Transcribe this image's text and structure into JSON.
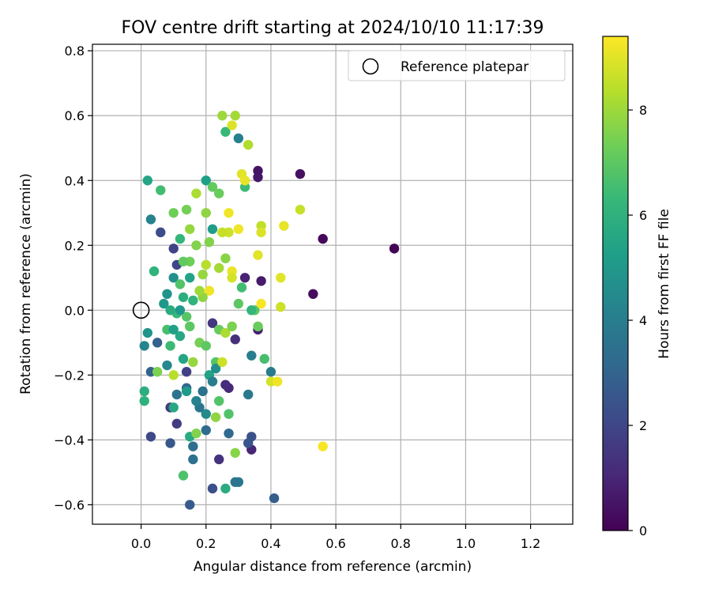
{
  "chart_data": {
    "type": "scatter",
    "title": "FOV centre drift starting at 2024/10/10 11:17:39",
    "xlabel": "Angular distance from reference (arcmin)",
    "ylabel": "Rotation from reference (arcmin)",
    "xlim": [
      -0.15,
      1.33
    ],
    "ylim": [
      -0.66,
      0.82
    ],
    "xticks": [
      0.0,
      0.2,
      0.4,
      0.6,
      0.8,
      1.0,
      1.2
    ],
    "xtick_labels": [
      "0.0",
      "0.2",
      "0.4",
      "0.6",
      "0.8",
      "1.0",
      "1.2"
    ],
    "yticks": [
      -0.6,
      -0.4,
      -0.2,
      0.0,
      0.2,
      0.4,
      0.6,
      0.8
    ],
    "ytick_labels": [
      "−0.6",
      "−0.4",
      "−0.2",
      "0.0",
      "0.2",
      "0.4",
      "0.6",
      "0.8"
    ],
    "grid": true,
    "legend": {
      "position": "top-right",
      "entries": [
        "Reference platepar"
      ]
    },
    "reference_point": {
      "name": "Reference platepar",
      "x": 0.0,
      "y": 0.0
    },
    "colorbar": {
      "label": "Hours from first FF file",
      "colormap": "viridis",
      "range": [
        0,
        9.4
      ],
      "ticks": [
        0,
        2,
        4,
        6,
        8
      ],
      "tick_labels": [
        "0",
        "2",
        "4",
        "6",
        "8"
      ]
    },
    "series": [
      {
        "points": [
          [
            0.78,
            0.19,
            0.1
          ],
          [
            0.56,
            0.22,
            0.2
          ],
          [
            0.53,
            0.05,
            0.3
          ],
          [
            0.49,
            0.42,
            0.4
          ],
          [
            0.36,
            0.43,
            0.5
          ],
          [
            0.36,
            0.41,
            0.6
          ],
          [
            0.37,
            0.09,
            0.7
          ],
          [
            0.36,
            -0.06,
            0.8
          ],
          [
            0.32,
            0.1,
            0.9
          ],
          [
            0.34,
            -0.43,
            1.0
          ],
          [
            0.27,
            -0.24,
            1.1
          ],
          [
            0.26,
            -0.23,
            1.2
          ],
          [
            0.29,
            -0.09,
            1.3
          ],
          [
            0.24,
            -0.46,
            1.4
          ],
          [
            0.22,
            -0.04,
            1.5
          ],
          [
            0.09,
            -0.3,
            1.6
          ],
          [
            0.11,
            -0.35,
            1.7
          ],
          [
            0.14,
            -0.19,
            1.8
          ],
          [
            0.1,
            0.19,
            1.9
          ],
          [
            0.11,
            0.14,
            2.0
          ],
          [
            0.03,
            -0.39,
            2.1
          ],
          [
            0.06,
            0.24,
            2.2
          ],
          [
            0.22,
            -0.55,
            2.3
          ],
          [
            0.34,
            -0.39,
            2.4
          ],
          [
            0.33,
            -0.41,
            2.5
          ],
          [
            0.09,
            -0.41,
            2.6
          ],
          [
            0.15,
            -0.6,
            2.7
          ],
          [
            0.41,
            -0.58,
            2.8
          ],
          [
            0.05,
            -0.1,
            2.9
          ],
          [
            0.03,
            -0.19,
            3.0
          ],
          [
            0.14,
            -0.24,
            3.1
          ],
          [
            0.27,
            -0.38,
            3.2
          ],
          [
            0.2,
            -0.37,
            3.3
          ],
          [
            0.16,
            -0.42,
            3.4
          ],
          [
            0.16,
            -0.46,
            3.5
          ],
          [
            0.29,
            -0.53,
            3.6
          ],
          [
            0.3,
            -0.53,
            3.7
          ],
          [
            0.33,
            -0.26,
            3.8
          ],
          [
            0.4,
            -0.19,
            3.9
          ],
          [
            0.34,
            -0.14,
            4.0
          ],
          [
            0.3,
            0.53,
            4.1
          ],
          [
            0.03,
            0.28,
            4.2
          ],
          [
            0.01,
            -0.11,
            4.3
          ],
          [
            0.08,
            -0.17,
            4.4
          ],
          [
            0.2,
            -0.32,
            4.5
          ],
          [
            0.17,
            -0.28,
            4.6
          ],
          [
            0.1,
            0.1,
            4.7
          ],
          [
            0.08,
            0.05,
            4.8
          ],
          [
            0.02,
            -0.07,
            4.9
          ],
          [
            0.07,
            0.02,
            5.0
          ],
          [
            0.14,
            -0.25,
            5.1
          ],
          [
            0.22,
            0.25,
            5.2
          ],
          [
            0.2,
            0.4,
            5.3
          ],
          [
            0.15,
            0.1,
            5.4
          ],
          [
            0.02,
            0.4,
            5.5
          ],
          [
            0.1,
            -0.3,
            5.6
          ],
          [
            0.15,
            -0.39,
            5.7
          ],
          [
            0.26,
            -0.55,
            5.8
          ],
          [
            0.01,
            -0.25,
            5.9
          ],
          [
            0.01,
            -0.28,
            6.0
          ],
          [
            0.04,
            0.12,
            6.1
          ],
          [
            0.12,
            0.22,
            6.2
          ],
          [
            0.26,
            0.55,
            6.3
          ],
          [
            0.32,
            0.38,
            6.4
          ],
          [
            0.06,
            0.37,
            6.5
          ],
          [
            0.08,
            -0.06,
            6.6
          ],
          [
            0.13,
            -0.51,
            6.7
          ],
          [
            0.27,
            -0.32,
            6.8
          ],
          [
            0.23,
            -0.16,
            6.9
          ],
          [
            0.35,
            0.0,
            7.0
          ],
          [
            0.22,
            0.38,
            7.1
          ],
          [
            0.24,
            0.36,
            7.2
          ],
          [
            0.1,
            0.3,
            7.3
          ],
          [
            0.14,
            0.31,
            7.4
          ],
          [
            0.05,
            -0.19,
            7.5
          ],
          [
            0.17,
            -0.38,
            7.6
          ],
          [
            0.29,
            -0.44,
            7.7
          ],
          [
            0.2,
            0.3,
            7.8
          ],
          [
            0.15,
            0.25,
            7.9
          ],
          [
            0.25,
            0.6,
            8.0
          ],
          [
            0.29,
            0.6,
            8.1
          ],
          [
            0.17,
            0.36,
            8.2
          ],
          [
            0.33,
            0.51,
            8.3
          ],
          [
            0.1,
            -0.2,
            8.4
          ],
          [
            0.37,
            0.26,
            8.5
          ],
          [
            0.49,
            0.31,
            8.6
          ],
          [
            0.43,
            0.01,
            8.7
          ],
          [
            0.4,
            -0.22,
            8.8
          ],
          [
            0.28,
            0.57,
            8.9
          ],
          [
            0.31,
            0.42,
            9.0
          ],
          [
            0.32,
            0.4,
            9.1
          ],
          [
            0.27,
            0.3,
            9.2
          ],
          [
            0.42,
            -0.22,
            9.2
          ],
          [
            0.56,
            -0.42,
            9.3
          ],
          [
            0.37,
            0.02,
            9.3
          ],
          [
            0.44,
            0.26,
            9.1
          ],
          [
            0.43,
            0.1,
            9.0
          ],
          [
            0.37,
            0.24,
            8.9
          ],
          [
            0.36,
            0.17,
            9.0
          ],
          [
            0.3,
            0.25,
            9.2
          ],
          [
            0.28,
            0.12,
            9.1
          ],
          [
            0.27,
            0.24,
            8.7
          ],
          [
            0.25,
            0.24,
            8.6
          ],
          [
            0.21,
            0.06,
            9.2
          ],
          [
            0.2,
            0.14,
            8.4
          ],
          [
            0.19,
            0.04,
            7.8
          ],
          [
            0.17,
            0.2,
            7.6
          ],
          [
            0.15,
            0.15,
            7.3
          ],
          [
            0.13,
            0.15,
            7.1
          ],
          [
            0.12,
            0.08,
            6.8
          ],
          [
            0.11,
            -0.01,
            6.3
          ],
          [
            0.09,
            0.0,
            5.8
          ],
          [
            0.12,
            -0.08,
            5.6
          ],
          [
            0.14,
            -0.02,
            6.9
          ],
          [
            0.16,
            -0.16,
            7.9
          ],
          [
            0.18,
            -0.1,
            7.4
          ],
          [
            0.2,
            -0.11,
            7.0
          ],
          [
            0.21,
            -0.2,
            5.4
          ],
          [
            0.23,
            -0.18,
            4.7
          ],
          [
            0.24,
            -0.06,
            7.2
          ],
          [
            0.26,
            -0.07,
            8.2
          ],
          [
            0.28,
            -0.05,
            7.5
          ],
          [
            0.3,
            0.02,
            7.0
          ],
          [
            0.31,
            0.07,
            6.5
          ],
          [
            0.22,
            -0.22,
            4.0
          ],
          [
            0.19,
            -0.25,
            3.5
          ],
          [
            0.18,
            -0.3,
            3.7
          ],
          [
            0.24,
            0.13,
            8.1
          ],
          [
            0.26,
            0.16,
            7.7
          ],
          [
            0.28,
            0.1,
            8.8
          ],
          [
            0.21,
            0.21,
            7.6
          ],
          [
            0.19,
            0.11,
            7.9
          ],
          [
            0.18,
            0.06,
            8.0
          ],
          [
            0.16,
            0.03,
            6.1
          ],
          [
            0.13,
            0.04,
            5.9
          ],
          [
            0.12,
            0.0,
            5.0
          ],
          [
            0.1,
            -0.06,
            5.3
          ],
          [
            0.09,
            -0.11,
            6.4
          ],
          [
            0.11,
            -0.26,
            3.6
          ],
          [
            0.13,
            -0.15,
            5.5
          ],
          [
            0.15,
            -0.05,
            7.0
          ],
          [
            0.17,
            -0.28,
            4.2
          ],
          [
            0.25,
            -0.16,
            8.7
          ],
          [
            0.23,
            -0.33,
            7.8
          ],
          [
            0.24,
            -0.28,
            6.8
          ],
          [
            0.36,
            -0.05,
            7.2
          ],
          [
            0.38,
            -0.15,
            6.6
          ],
          [
            0.34,
            0.0,
            6.2
          ]
        ]
      }
    ]
  }
}
